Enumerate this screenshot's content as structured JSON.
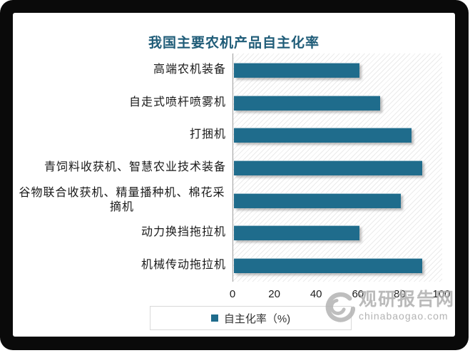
{
  "title": "我国主要农机产品自主化率",
  "chart_data": {
    "type": "bar",
    "orientation": "horizontal",
    "title": "我国主要农机产品自主化率",
    "categories": [
      "高端农机装备",
      "自走式喷杆喷雾机",
      "打捆机",
      "青饲料收获机、智慧农业技术装备",
      "谷物联合收获机、精量播种机、棉花采摘机",
      "动力换挡拖拉机",
      "机械传动拖拉机"
    ],
    "values": [
      60,
      70,
      85,
      90,
      80,
      60,
      90
    ],
    "series_name": "自主化率（%)",
    "xlabel": "",
    "ylabel": "",
    "xlim": [
      0,
      100
    ],
    "x_ticks": [
      0,
      20,
      40,
      60,
      80,
      100
    ],
    "grid": "none",
    "legend_position": "bottom",
    "bar_color": "#1f6c8c",
    "plot_hatch": "diagonal-light-gray"
  },
  "legend": {
    "label": "自主化率（%)",
    "marker_color": "#1f6c8c"
  },
  "watermark": {
    "logo": "swirl-logo",
    "site_name": "观研报告网",
    "site_url": "chinabaogao.com"
  },
  "colors": {
    "title_text": "#1f5c78",
    "bar": "#1f6c8c",
    "frame": "#0a0a0a",
    "axis_line": "#9e9e9e",
    "watermark_gray": "#aeaeae"
  }
}
